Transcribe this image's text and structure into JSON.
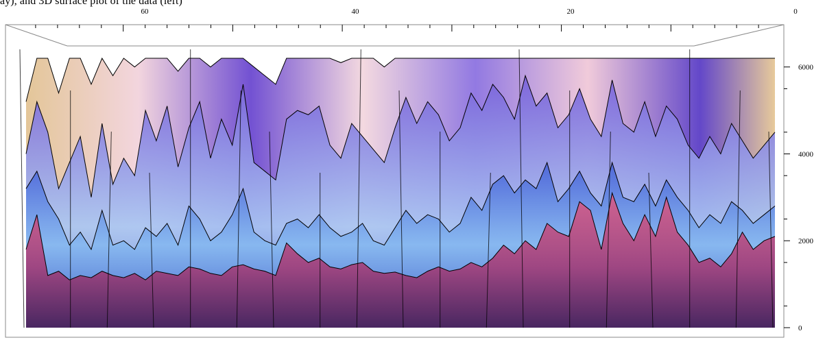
{
  "caption": {
    "text": "ay), and 3D surface plot of the data (left)"
  },
  "chart_data": {
    "type": "area",
    "view": "3d-surface-mesh",
    "title": "",
    "xlabel": "",
    "ylabel": "",
    "x_axis": {
      "range": [
        70,
        0
      ],
      "ticks": [
        "60",
        "40",
        "20",
        "0"
      ],
      "reversed": true
    },
    "z_axis": {
      "range": [
        0,
        6500
      ],
      "ticks": [
        "0",
        "2000",
        "4000",
        "6000"
      ],
      "side": "right"
    },
    "clip_top": 6200,
    "grid": false,
    "legend": "none",
    "colors": {
      "front_surface": [
        "#5a2a6a",
        "#c8507e",
        "#e89aa8"
      ],
      "mid_surface": [
        "#3a5fd0",
        "#7fb0ee",
        "#c8dcf4"
      ],
      "back_surface": [
        "#e6c796",
        "#f5d8df",
        "#7b5bd8"
      ],
      "mesh": "#000000",
      "box": "#707070"
    },
    "series": [
      {
        "values": [
          1800,
          2600,
          1200,
          1300,
          1100,
          1200,
          1150,
          1300,
          1200,
          1150,
          1250,
          1100,
          1300,
          1250,
          1200,
          1400,
          1350,
          1250,
          1200,
          1400,
          1450,
          1350,
          1300,
          1200,
          1950,
          1700,
          1500,
          1600,
          1400,
          1350,
          1450,
          1500,
          1300,
          1250,
          1280,
          1200,
          1150,
          1300,
          1400,
          1300,
          1350,
          1500,
          1400,
          1600,
          1900,
          1700,
          2000,
          1800,
          2400,
          2200,
          2100,
          2900,
          2700,
          1800,
          3100,
          2400,
          2000,
          2600,
          2100,
          3000,
          2200,
          1900,
          1500,
          1600,
          1400,
          1700,
          2200,
          1800,
          2000,
          2100
        ]
      },
      {
        "values": [
          3200,
          3600,
          2900,
          2500,
          1900,
          2200,
          1800,
          2700,
          1900,
          2000,
          1800,
          2300,
          2100,
          2400,
          1900,
          2800,
          2500,
          2000,
          2200,
          2600,
          3200,
          2200,
          2000,
          1900,
          2400,
          2500,
          2300,
          2600,
          2300,
          2100,
          2200,
          2400,
          2000,
          1900,
          2300,
          2700,
          2400,
          2600,
          2500,
          2200,
          2400,
          3000,
          2700,
          3300,
          3500,
          3100,
          3400,
          3200,
          3800,
          2900,
          3200,
          3600,
          3100,
          2800,
          3800,
          3000,
          2900,
          3300,
          2800,
          3400,
          3000,
          2700,
          2300,
          2600,
          2400,
          2900,
          2700,
          2400,
          2600,
          2800
        ]
      },
      {
        "values": [
          4000,
          5200,
          4500,
          3200,
          3800,
          4400,
          3000,
          4700,
          3300,
          3900,
          3500,
          5000,
          4300,
          5100,
          3700,
          4600,
          5200,
          3900,
          4800,
          4200,
          5600,
          3800,
          3600,
          3400,
          4800,
          5000,
          4900,
          5100,
          4200,
          3900,
          4700,
          4400,
          4100,
          3800,
          4600,
          5300,
          4700,
          5200,
          4900,
          4300,
          4600,
          5400,
          5000,
          5600,
          5300,
          4800,
          5800,
          5100,
          5400,
          4600,
          4900,
          5500,
          4800,
          4400,
          5700,
          4700,
          4500,
          5200,
          4400,
          5100,
          4800,
          4200,
          3900,
          4400,
          4000,
          4700,
          4300,
          3900,
          4200,
          4500
        ]
      },
      {
        "values": [
          5200,
          6200,
          6200,
          5400,
          6200,
          6200,
          5600,
          6200,
          5800,
          6200,
          6000,
          6200,
          6200,
          6200,
          5900,
          6200,
          6200,
          6000,
          6200,
          6200,
          6200,
          6000,
          5800,
          5600,
          6200,
          6200,
          6200,
          6200,
          6200,
          6100,
          6200,
          6200,
          6200,
          6000,
          6200,
          6200,
          6200,
          6200,
          6200,
          6200,
          6200,
          6200,
          6200,
          6200,
          6200,
          6200,
          6200,
          6200,
          6200,
          6200,
          6200,
          6200,
          6200,
          6200,
          6200,
          6200,
          6200,
          6200,
          6200,
          6200,
          6200,
          6200,
          6200,
          6200,
          6200,
          6200,
          6200,
          6200,
          6200,
          6200
        ]
      }
    ]
  }
}
